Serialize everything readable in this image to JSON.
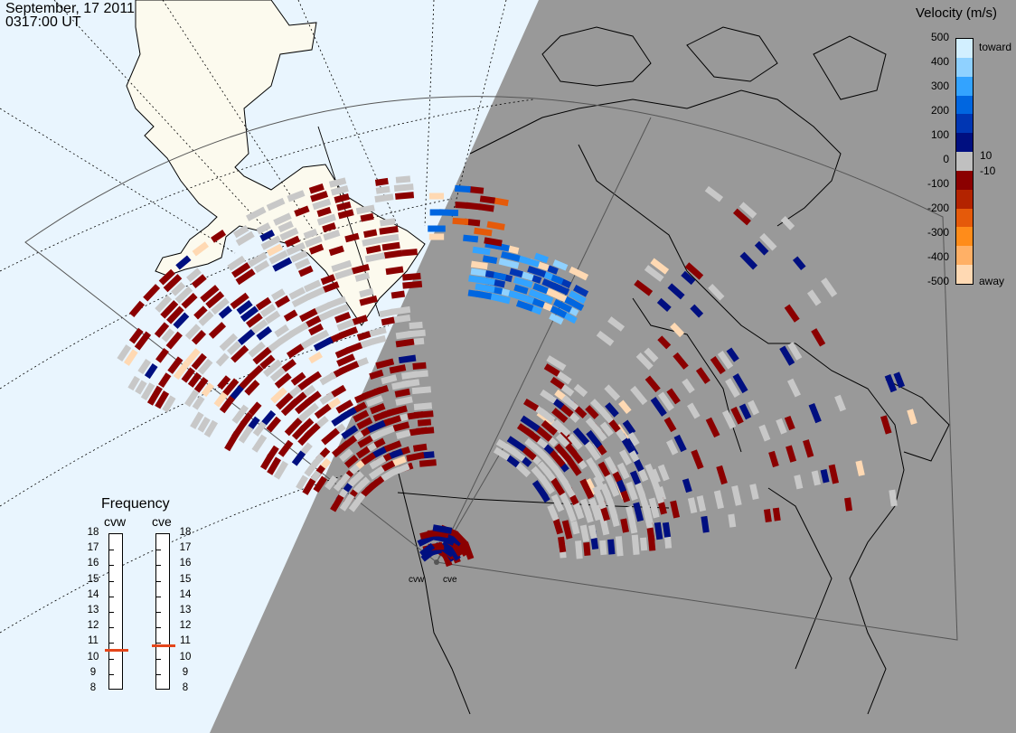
{
  "header": {
    "date": "September, 17 2011",
    "time": "0317:00 UT"
  },
  "velocity_scale": {
    "title": "Velocity (m/s)",
    "ticks": [
      "500",
      "400",
      "300",
      "200",
      "100",
      "0",
      "-100",
      "-200",
      "-300",
      "-400",
      "-500"
    ],
    "extra_ticks": [
      "10",
      "-10"
    ],
    "toward_label": "toward",
    "away_label": "away",
    "colors": [
      "#ffd9b3",
      "#ffb066",
      "#ff8c1a",
      "#e55a0a",
      "#b32300",
      "#8b0000",
      "#c0c0c0",
      "#000f80",
      "#0036b3",
      "#0066e0",
      "#33a3ff",
      "#8fd1ff",
      "#d2efff"
    ]
  },
  "frequency_panel": {
    "title": "Frequency",
    "radars": [
      {
        "name": "cvw",
        "frequency_mhz": 10.5
      },
      {
        "name": "cve",
        "frequency_mhz": 10.8
      }
    ],
    "scale": [
      "18",
      "17",
      "16",
      "15",
      "14",
      "13",
      "12",
      "11",
      "10",
      "9",
      "8"
    ],
    "marker_color": "#e4461b"
  },
  "radar_labels": [
    "cvw",
    "cve"
  ],
  "map": {
    "colors": {
      "ocean": "#e9f5fe",
      "land": "#fcfaee",
      "night": "#999999",
      "ground_scatter": "#c8c8c8",
      "coast": "#000000"
    }
  }
}
